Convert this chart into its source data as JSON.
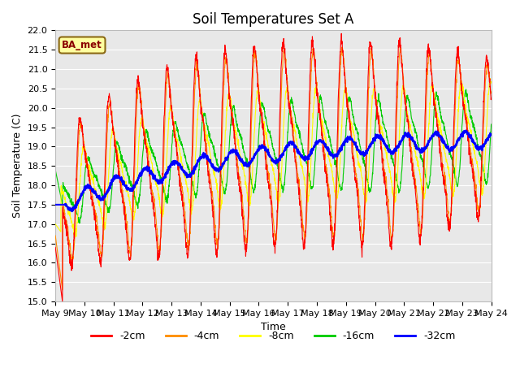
{
  "title": "Soil Temperatures Set A",
  "xlabel": "Time",
  "ylabel": "Soil Temperature (C)",
  "ylim": [
    15.0,
    22.0
  ],
  "yticks": [
    15.0,
    15.5,
    16.0,
    16.5,
    17.0,
    17.5,
    18.0,
    18.5,
    19.0,
    19.5,
    20.0,
    20.5,
    21.0,
    21.5,
    22.0
  ],
  "xtick_labels": [
    "May 9",
    "May 10",
    "May 11",
    "May 12",
    "May 13",
    "May 14",
    "May 15",
    "May 16",
    "May 17",
    "May 18",
    "May 19",
    "May 20",
    "May 21",
    "May 22",
    "May 23",
    "May 24"
  ],
  "colors": {
    "-2cm": "#FF0000",
    "-4cm": "#FF8C00",
    "-8cm": "#FFFF00",
    "-16cm": "#00CC00",
    "-32cm": "#0000FF"
  },
  "legend_label": "BA_met",
  "background_color": "#E8E8E8",
  "title_fontsize": 12,
  "axis_fontsize": 9,
  "tick_fontsize": 8
}
